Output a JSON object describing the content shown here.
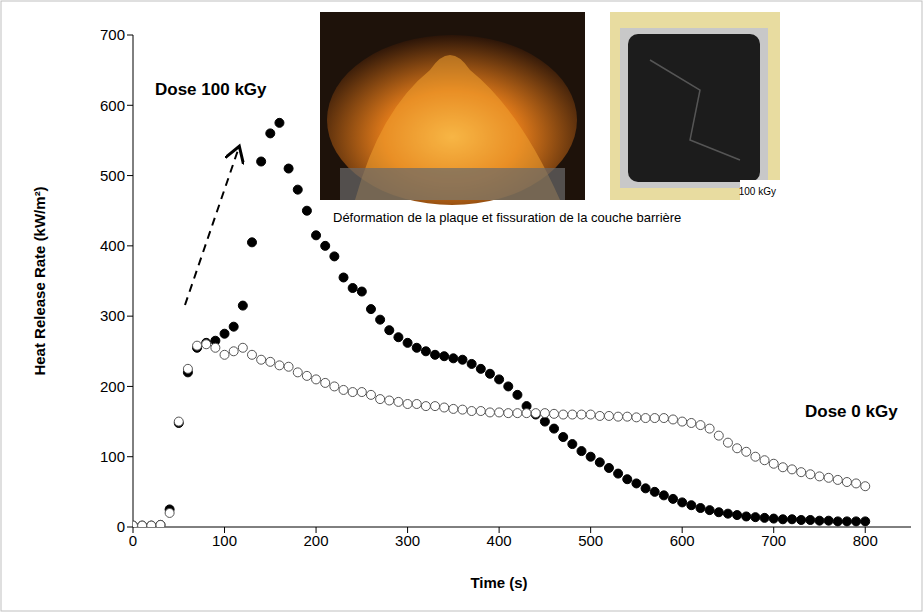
{
  "chart_data": {
    "type": "scatter",
    "x_label": "Time (s)",
    "y_label": "Heat Release Rate (kW/m²)",
    "xlim": [
      0,
      850
    ],
    "xticks": [
      0,
      100,
      200,
      300,
      400,
      500,
      600,
      700,
      800
    ],
    "ylim": [
      0,
      700
    ],
    "yticks": [
      0,
      100,
      200,
      300,
      400,
      500,
      600,
      700
    ],
    "x": [
      0,
      10,
      20,
      30,
      40,
      50,
      60,
      70,
      80,
      90,
      100,
      110,
      120,
      130,
      140,
      150,
      160,
      170,
      180,
      190,
      200,
      210,
      220,
      230,
      240,
      250,
      260,
      270,
      280,
      290,
      300,
      310,
      320,
      330,
      340,
      350,
      360,
      370,
      380,
      390,
      400,
      410,
      420,
      430,
      440,
      450,
      460,
      470,
      480,
      490,
      500,
      510,
      520,
      530,
      540,
      550,
      560,
      570,
      580,
      590,
      600,
      610,
      620,
      630,
      640,
      650,
      660,
      670,
      680,
      690,
      700,
      710,
      720,
      730,
      740,
      750,
      760,
      770,
      780,
      790,
      800
    ],
    "series": [
      {
        "name": "Dose 100 kGy",
        "color": "#000000",
        "marker": "circle",
        "values": [
          2,
          2,
          2,
          3,
          25,
          148,
          220,
          255,
          262,
          265,
          275,
          285,
          315,
          405,
          520,
          560,
          575,
          510,
          480,
          450,
          415,
          400,
          385,
          355,
          340,
          335,
          310,
          295,
          280,
          270,
          262,
          255,
          250,
          245,
          243,
          240,
          238,
          232,
          225,
          218,
          210,
          200,
          188,
          172,
          160,
          150,
          140,
          128,
          118,
          108,
          100,
          92,
          84,
          76,
          68,
          62,
          55,
          50,
          45,
          40,
          35,
          31,
          27,
          24,
          21,
          19,
          17,
          15,
          14,
          13,
          12,
          11,
          11,
          10,
          10,
          9,
          9,
          8,
          8,
          8,
          8
        ]
      },
      {
        "name": "Dose 0 kGy",
        "color": "#000000",
        "marker": "open_circle",
        "values": [
          2,
          2,
          2,
          3,
          20,
          150,
          225,
          258,
          260,
          255,
          245,
          250,
          255,
          245,
          238,
          235,
          230,
          228,
          220,
          215,
          210,
          205,
          200,
          195,
          192,
          192,
          188,
          182,
          180,
          178,
          175,
          175,
          172,
          172,
          170,
          168,
          167,
          165,
          165,
          163,
          163,
          162,
          162,
          162,
          162,
          162,
          161,
          160,
          160,
          160,
          160,
          158,
          158,
          157,
          157,
          156,
          155,
          155,
          155,
          153,
          150,
          148,
          145,
          140,
          130,
          120,
          112,
          107,
          100,
          95,
          90,
          85,
          82,
          78,
          75,
          72,
          70,
          67,
          64,
          62,
          58
        ]
      }
    ],
    "annotations": [
      "Déformation de la plaque et fissuration de la couche barrière",
      "100 kGy"
    ]
  }
}
